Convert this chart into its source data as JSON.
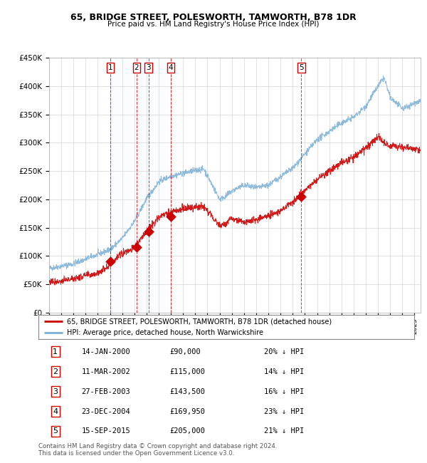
{
  "title": "65, BRIDGE STREET, POLESWORTH, TAMWORTH, B78 1DR",
  "subtitle": "Price paid vs. HM Land Registry's House Price Index (HPI)",
  "legend_house": "65, BRIDGE STREET, POLESWORTH, TAMWORTH, B78 1DR (detached house)",
  "legend_hpi": "HPI: Average price, detached house, North Warwickshire",
  "footer_line1": "Contains HM Land Registry data © Crown copyright and database right 2024.",
  "footer_line2": "This data is licensed under the Open Government Licence v3.0.",
  "transactions": [
    {
      "num": 1,
      "year": 2000.04,
      "price": 90000,
      "label": "14-JAN-2000",
      "price_str": "£90,000",
      "hpi_str": "20% ↓ HPI"
    },
    {
      "num": 2,
      "year": 2002.19,
      "price": 115000,
      "label": "11-MAR-2002",
      "price_str": "£115,000",
      "hpi_str": "14% ↓ HPI"
    },
    {
      "num": 3,
      "year": 2003.16,
      "price": 143500,
      "label": "27-FEB-2003",
      "price_str": "£143,500",
      "hpi_str": "16% ↓ HPI"
    },
    {
      "num": 4,
      "year": 2004.98,
      "price": 169950,
      "label": "23-DEC-2004",
      "price_str": "£169,950",
      "hpi_str": "23% ↓ HPI"
    },
    {
      "num": 5,
      "year": 2015.71,
      "price": 205000,
      "label": "15-SEP-2015",
      "price_str": "£205,000",
      "hpi_str": "21% ↓ HPI"
    }
  ],
  "xmin": 1995,
  "xmax": 2025.5,
  "ymin": 0,
  "ymax": 450000,
  "yticks": [
    0,
    50000,
    100000,
    150000,
    200000,
    250000,
    300000,
    350000,
    400000,
    450000
  ],
  "red_color": "#cc0000",
  "blue_color": "#7aaed6",
  "shade_color": "#ddeeff",
  "grid_color": "#cccccc",
  "bg_color": "#ffffff"
}
